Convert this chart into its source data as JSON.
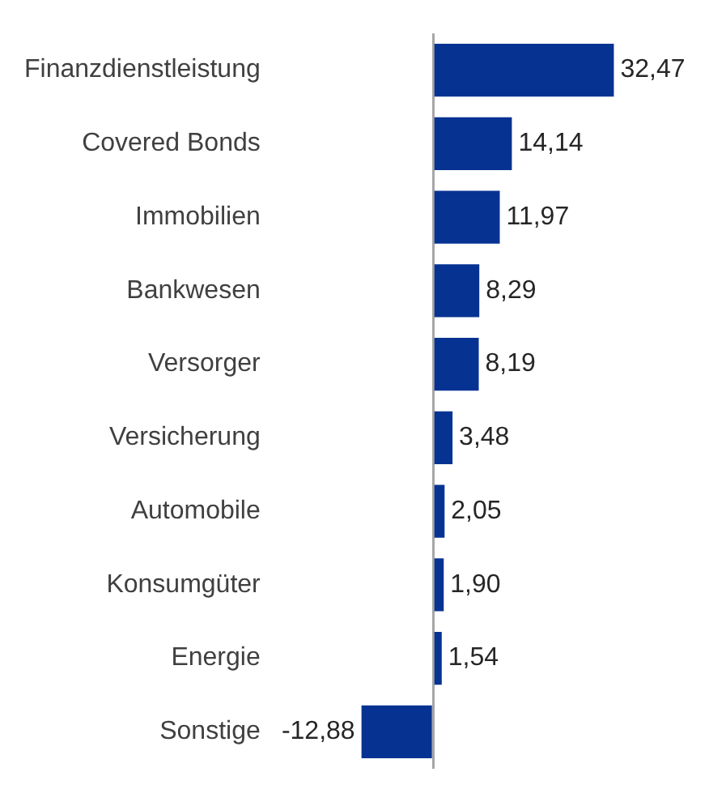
{
  "chart_data": {
    "type": "bar",
    "orientation": "horizontal",
    "relative": false,
    "tick_labels": "y",
    "legend": false,
    "categories": [
      "Finanzdienstleistung",
      "Covered Bonds",
      "Immobilien",
      "Bankwesen",
      "Versorger",
      "Versicherung",
      "Automobile",
      "Konsumgüter",
      "Energie",
      "Sonstige"
    ],
    "values": [
      32.47,
      14.14,
      11.97,
      8.29,
      8.19,
      3.48,
      2.05,
      1.9,
      1.54,
      -12.88
    ],
    "value_labels": [
      "32,47",
      "14,14",
      "11,97",
      "8,29",
      "8,19",
      "3,48",
      "2,05",
      "1,90",
      "1,54",
      "-12,88"
    ],
    "color": "#063392"
  }
}
